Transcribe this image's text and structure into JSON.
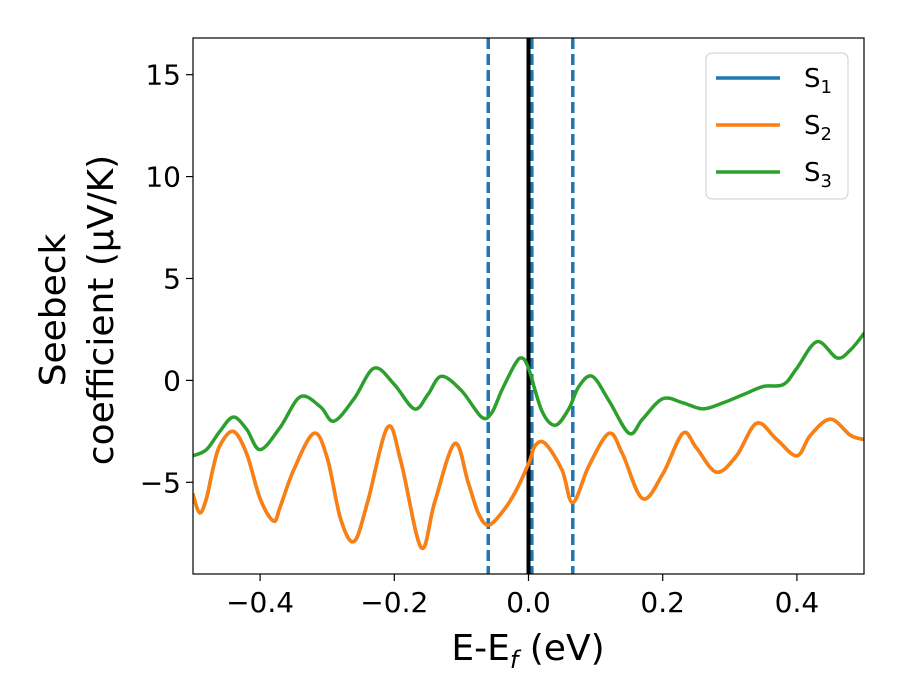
{
  "chart_data": {
    "type": "line",
    "xlabel": "E-E",
    "xlabel_sub": "f",
    "xlabel_unit": "(eV)",
    "ylabel_line1": "Seebeck",
    "ylabel_line2": "coefficient  (μV/K)",
    "xlim": [
      -0.5,
      0.5
    ],
    "ylim": [
      -9.5,
      16.8
    ],
    "xticks": [
      -0.4,
      -0.2,
      0.0,
      0.2,
      0.4
    ],
    "xtick_labels": [
      "−0.4",
      "−0.2",
      "0.0",
      "0.2",
      "0.4"
    ],
    "yticks": [
      -5,
      0,
      5,
      10,
      15
    ],
    "ytick_labels": [
      "−5",
      "0",
      "5",
      "10",
      "15"
    ],
    "vertical_lines": [
      {
        "x": -0.06,
        "style": "dashed",
        "color": "#1f77b4"
      },
      {
        "x": 0.005,
        "style": "dashed",
        "color": "#1f77b4"
      },
      {
        "x": 0.066,
        "style": "dashed",
        "color": "#1f77b4"
      },
      {
        "x": 0.0,
        "style": "solid",
        "color": "#000000"
      }
    ],
    "legend_position": "top-right",
    "series": [
      {
        "name": "S",
        "sub": "1",
        "color": "#1f77b4",
        "x": [
          -0.5,
          -0.49,
          -0.48,
          -0.47,
          -0.46,
          -0.44,
          -0.42,
          -0.4,
          -0.38,
          -0.37,
          -0.35,
          -0.32,
          -0.3,
          -0.28,
          -0.26,
          -0.24,
          -0.21,
          -0.19,
          -0.16,
          -0.14,
          -0.11,
          -0.09,
          -0.075,
          -0.06,
          -0.04,
          -0.02,
          0.0,
          0.01,
          0.025,
          0.05,
          0.066,
          0.09,
          0.12,
          0.14,
          0.17,
          0.2,
          0.23,
          0.25,
          0.28,
          0.31,
          0.34,
          0.37,
          0.4,
          0.42,
          0.45,
          0.48,
          0.5
        ],
        "y": [
          -5.6,
          -6.5,
          -5.8,
          -4.3,
          -3.2,
          -2.5,
          -3.6,
          -5.8,
          -6.9,
          -6.2,
          -4.4,
          -2.6,
          -3.8,
          -6.8,
          -7.9,
          -6.0,
          -2.3,
          -4.0,
          -8.2,
          -6.0,
          -3.1,
          -5.0,
          -6.5,
          -7.1,
          -6.5,
          -5.5,
          -4.1,
          -3.2,
          -3.1,
          -4.4,
          -6.0,
          -4.2,
          -2.6,
          -3.6,
          -5.8,
          -4.6,
          -2.6,
          -3.3,
          -4.5,
          -3.7,
          -2.1,
          -2.9,
          -3.7,
          -2.7,
          -1.9,
          -2.7,
          -2.9
        ]
      },
      {
        "name": "S",
        "sub": "2",
        "color": "#ff7f0e",
        "x": [
          -0.5,
          -0.49,
          -0.48,
          -0.47,
          -0.46,
          -0.44,
          -0.42,
          -0.4,
          -0.38,
          -0.37,
          -0.35,
          -0.32,
          -0.3,
          -0.28,
          -0.26,
          -0.24,
          -0.21,
          -0.19,
          -0.16,
          -0.14,
          -0.11,
          -0.09,
          -0.075,
          -0.06,
          -0.04,
          -0.02,
          0.0,
          0.01,
          0.025,
          0.05,
          0.066,
          0.09,
          0.12,
          0.14,
          0.17,
          0.2,
          0.23,
          0.25,
          0.28,
          0.31,
          0.34,
          0.37,
          0.4,
          0.42,
          0.45,
          0.48,
          0.5
        ],
        "y": [
          -5.6,
          -6.5,
          -5.8,
          -4.3,
          -3.2,
          -2.5,
          -3.6,
          -5.8,
          -6.9,
          -6.2,
          -4.4,
          -2.6,
          -3.8,
          -6.8,
          -7.9,
          -6.0,
          -2.3,
          -4.0,
          -8.2,
          -6.0,
          -3.1,
          -5.0,
          -6.5,
          -7.1,
          -6.5,
          -5.5,
          -4.1,
          -3.2,
          -3.1,
          -4.4,
          -6.0,
          -4.2,
          -2.6,
          -3.6,
          -5.8,
          -4.6,
          -2.6,
          -3.3,
          -4.5,
          -3.7,
          -2.1,
          -2.9,
          -3.7,
          -2.7,
          -1.9,
          -2.7,
          -2.9
        ]
      },
      {
        "name": "S",
        "sub": "3",
        "color": "#2ca02c",
        "x": [
          -0.5,
          -0.48,
          -0.46,
          -0.44,
          -0.42,
          -0.4,
          -0.37,
          -0.34,
          -0.31,
          -0.29,
          -0.26,
          -0.23,
          -0.2,
          -0.17,
          -0.15,
          -0.13,
          -0.1,
          -0.07,
          -0.055,
          -0.04,
          -0.02,
          -0.01,
          0.0,
          0.02,
          0.04,
          0.06,
          0.075,
          0.095,
          0.12,
          0.15,
          0.17,
          0.2,
          0.23,
          0.26,
          0.29,
          0.32,
          0.35,
          0.38,
          0.4,
          0.43,
          0.46,
          0.48,
          0.5
        ],
        "y": [
          -3.7,
          -3.4,
          -2.5,
          -1.8,
          -2.4,
          -3.4,
          -2.3,
          -0.8,
          -1.3,
          -2.0,
          -0.9,
          0.6,
          -0.2,
          -1.4,
          -0.7,
          0.2,
          -0.5,
          -1.8,
          -1.6,
          -0.5,
          0.8,
          1.1,
          0.6,
          -1.5,
          -2.2,
          -1.4,
          -0.3,
          0.2,
          -1.0,
          -2.6,
          -1.9,
          -0.9,
          -1.1,
          -1.4,
          -1.1,
          -0.7,
          -0.3,
          -0.2,
          0.6,
          1.9,
          1.1,
          1.5,
          2.3
        ]
      }
    ]
  }
}
